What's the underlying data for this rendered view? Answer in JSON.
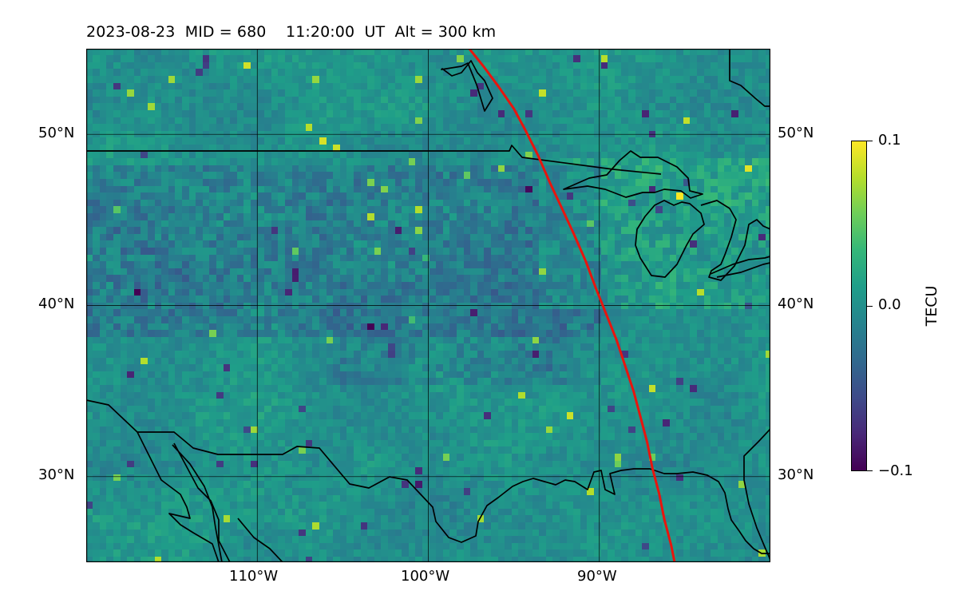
{
  "title": "2023-08-23  MID = 680    11:20:00  UT  Alt = 300 km",
  "map": {
    "lon_range": [
      -120,
      -80
    ],
    "lat_range": [
      25,
      55
    ],
    "lon_ticks": [
      {
        "lon": -110,
        "label": "110°W"
      },
      {
        "lon": -100,
        "label": "100°W"
      },
      {
        "lon": -90,
        "label": "90°W"
      }
    ],
    "lat_ticks": [
      {
        "lat": 50,
        "label": "50°N"
      },
      {
        "lat": 40,
        "label": "40°N"
      },
      {
        "lat": 30,
        "label": "30°N"
      }
    ],
    "gridlines": true,
    "track_color": "#e8150e",
    "track": [
      [
        -97.6,
        55
      ],
      [
        -96.8,
        54
      ],
      [
        -95.9,
        52.8
      ],
      [
        -95.0,
        51.5
      ],
      [
        -94.3,
        50.2
      ],
      [
        -93.6,
        48.8
      ],
      [
        -92.9,
        47.2
      ],
      [
        -92.2,
        45.7
      ],
      [
        -91.5,
        44.2
      ],
      [
        -90.8,
        42.6
      ],
      [
        -90.2,
        41.0
      ],
      [
        -89.6,
        39.5
      ],
      [
        -89.0,
        38.0
      ],
      [
        -88.5,
        36.5
      ],
      [
        -88.0,
        35.0
      ],
      [
        -87.6,
        33.5
      ],
      [
        -87.2,
        32.0
      ],
      [
        -86.9,
        30.5
      ],
      [
        -86.5,
        29.0
      ],
      [
        -86.2,
        27.5
      ],
      [
        -85.8,
        26.0
      ],
      [
        -85.6,
        25
      ]
    ]
  },
  "colorbar": {
    "label": "TECU",
    "min": -0.1,
    "max": 0.1,
    "ticks": [
      {
        "value": 0.1,
        "label": "0.1"
      },
      {
        "value": 0.0,
        "label": "0.0"
      },
      {
        "value": -0.1,
        "label": "−0.1"
      }
    ]
  }
}
